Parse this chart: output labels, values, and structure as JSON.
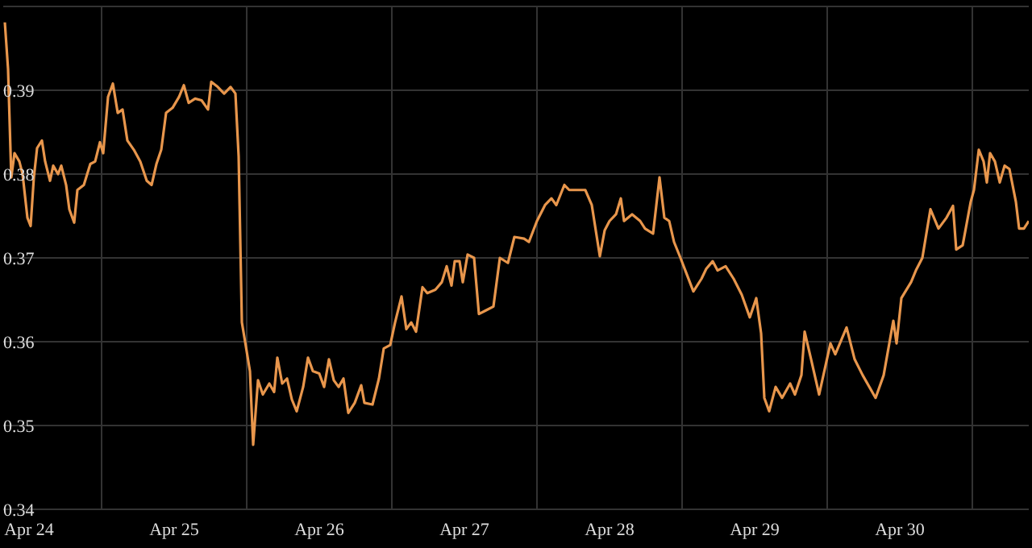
{
  "chart_data": {
    "type": "line",
    "grid": true,
    "marker": "none",
    "line_style": "solid",
    "xlim": [
      "--04-24T07:44",
      "--05-01T09:20"
    ],
    "xticks": [
      {
        "value": "--04-24T12:00",
        "label": "Apr 24"
      },
      {
        "value": "--04-25T12:00",
        "label": "Apr 25"
      },
      {
        "value": "--04-26T12:00",
        "label": "Apr 26"
      },
      {
        "value": "--04-27T12:00",
        "label": "Apr 27"
      },
      {
        "value": "--04-28T12:00",
        "label": "Apr 28"
      },
      {
        "value": "--04-29T12:00",
        "label": "Apr 29"
      },
      {
        "value": "--04-30T12:00",
        "label": "Apr 30"
      },
      {
        "value": "--04-25",
        "label": null
      },
      {
        "value": "--04-26",
        "label": null
      },
      {
        "value": "--04-27",
        "label": null
      },
      {
        "value": "--04-28",
        "label": null
      },
      {
        "value": "--04-29",
        "label": null
      },
      {
        "value": "--04-30",
        "label": null
      },
      {
        "value": "--05-01",
        "label": null
      }
    ],
    "ylim": [
      0.34,
      0.4
    ],
    "yticks": [
      0.34,
      0.35,
      0.36,
      0.37,
      0.38,
      0.39,
      {
        "value": 0.4,
        "label": null
      }
    ],
    "x": [
      "--04-24T08:00",
      "--04-24T08:32",
      "--04-24T09:04",
      "--04-24T09:36",
      "--04-24T10:24",
      "--04-24T10:56",
      "--04-24T11:44",
      "--04-24T12:16",
      "--04-24T12:48",
      "--04-24T13:20",
      "--04-24T14:08",
      "--04-24T14:40",
      "--04-24T15:28",
      "--04-24T16:00",
      "--04-24T16:48",
      "--04-24T17:20",
      "--04-24T18:08",
      "--04-24T18:40",
      "--04-24T19:28",
      "--04-24T20:00",
      "--04-24T21:04",
      "--04-24T22:08",
      "--04-24T22:56",
      "--04-24T23:44",
      "--04-25T00:16",
      "--04-25T01:04",
      "--04-25T01:52",
      "--04-25T02:40",
      "--04-25T03:28",
      "--04-25T04:16",
      "--04-25T05:20",
      "--04-25T06:24",
      "--04-25T07:28",
      "--04-25T08:16",
      "--04-25T09:04",
      "--04-25T09:52",
      "--04-25T10:40",
      "--04-25T11:44",
      "--04-25T12:48",
      "--04-25T13:36",
      "--04-25T14:24",
      "--04-25T15:28",
      "--04-25T16:32",
      "--04-25T17:36",
      "--04-25T18:08",
      "--04-25T19:12",
      "--04-25T20:16",
      "--04-25T21:20",
      "--04-25T22:08",
      "--04-25T22:40",
      "--04-25T23:12",
      "--04-25T23:44",
      "--04-26T00:32",
      "--04-26T01:04",
      "--04-26T01:52",
      "--04-26T02:40",
      "--04-26T03:44",
      "--04-26T04:32",
      "--04-26T05:04",
      "--04-26T05:52",
      "--04-26T06:40",
      "--04-26T07:28",
      "--04-26T08:16",
      "--04-26T09:20",
      "--04-26T10:08",
      "--04-26T10:56",
      "--04-26T12:00",
      "--04-26T12:48",
      "--04-26T13:36",
      "--04-26T14:24",
      "--04-26T15:12",
      "--04-26T16:00",
      "--04-26T16:48",
      "--04-26T17:52",
      "--04-26T18:56",
      "--04-26T19:28",
      "--04-26T20:48",
      "--04-26T21:52",
      "--04-26T22:40",
      "--04-26T23:44",
      "--04-27T00:32",
      "--04-27T01:36",
      "--04-27T02:24",
      "--04-27T03:12",
      "--04-27T04:00",
      "--04-27T05:04",
      "--04-27T05:52",
      "--04-27T07:12",
      "--04-27T08:16",
      "--04-27T09:04",
      "--04-27T09:52",
      "--04-27T10:24",
      "--04-27T11:12",
      "--04-27T11:44",
      "--04-27T12:32",
      "--04-27T13:36",
      "--04-27T14:24",
      "--04-27T15:28",
      "--04-27T16:48",
      "--04-27T17:52",
      "--04-27T19:12",
      "--04-27T20:16",
      "--04-27T21:52",
      "--04-27T22:40",
      "--04-28T00:00",
      "--04-28T01:20",
      "--04-28T02:24",
      "--04-28T03:12",
      "--04-28T04:32",
      "--04-28T05:20",
      "--04-28T06:40",
      "--04-28T08:00",
      "--04-28T09:04",
      "--04-28T10:24",
      "--04-28T11:12",
      "--04-28T12:00",
      "--04-28T13:04",
      "--04-28T13:52",
      "--04-28T14:24",
      "--04-28T15:44",
      "--04-28T17:04",
      "--04-28T17:52",
      "--04-28T19:12",
      "--04-28T20:16",
      "--04-28T21:04",
      "--04-28T21:52",
      "--04-28T22:40",
      "--04-28T23:44",
      "--04-29T00:32",
      "--04-29T01:52",
      "--04-29T03:12",
      "--04-29T04:00",
      "--04-29T05:04",
      "--04-29T05:52",
      "--04-29T07:12",
      "--04-29T08:32",
      "--04-29T09:52",
      "--04-29T11:12",
      "--04-29T12:16",
      "--04-29T13:04",
      "--04-29T13:36",
      "--04-29T14:24",
      "--04-29T15:28",
      "--04-29T16:32",
      "--04-29T17:52",
      "--04-29T18:40",
      "--04-29T19:44",
      "--04-29T20:16",
      "--04-29T21:20",
      "--04-29T22:40",
      "--04-30T00:32",
      "--04-30T01:20",
      "--04-30T03:12",
      "--04-30T04:32",
      "--04-30T05:52",
      "--04-30T08:00",
      "--04-30T09:20",
      "--04-30T10:56",
      "--04-30T11:28",
      "--04-30T12:16",
      "--04-30T13:52",
      "--04-30T14:40",
      "--04-30T15:44",
      "--04-30T17:04",
      "--04-30T18:24",
      "--04-30T19:44",
      "--04-30T20:48",
      "--04-30T21:20",
      "--04-30T22:24",
      "--04-30T23:44",
      "--05-01T00:16",
      "--05-01T01:04",
      "--05-01T01:52",
      "--05-01T02:24",
      "--05-01T02:56",
      "--05-01T03:44",
      "--05-01T04:32",
      "--05-01T05:20",
      "--05-01T06:08",
      "--05-01T07:12",
      "--05-01T07:44",
      "--05-01T08:32",
      "--05-01T09:20"
    ],
    "series": [
      {
        "color": "#e8964c",
        "values": [
          0.3981,
          0.3925,
          0.3796,
          0.3825,
          0.3815,
          0.38,
          0.3748,
          0.3738,
          0.3796,
          0.3831,
          0.384,
          0.3815,
          0.3792,
          0.381,
          0.38,
          0.381,
          0.3787,
          0.3758,
          0.3742,
          0.3781,
          0.3787,
          0.3812,
          0.3815,
          0.3838,
          0.3825,
          0.3892,
          0.3908,
          0.3873,
          0.3877,
          0.384,
          0.3829,
          0.3815,
          0.3792,
          0.3787,
          0.3812,
          0.3829,
          0.3873,
          0.3879,
          0.3892,
          0.3906,
          0.3885,
          0.389,
          0.3888,
          0.3877,
          0.391,
          0.3904,
          0.3896,
          0.3904,
          0.3896,
          0.3821,
          0.3623,
          0.36,
          0.3565,
          0.3477,
          0.3554,
          0.3537,
          0.355,
          0.354,
          0.3581,
          0.355,
          0.3556,
          0.3531,
          0.3517,
          0.3546,
          0.3581,
          0.3565,
          0.3562,
          0.3546,
          0.3579,
          0.3554,
          0.3546,
          0.3556,
          0.3515,
          0.3527,
          0.3548,
          0.3527,
          0.3525,
          0.3556,
          0.3592,
          0.3596,
          0.3623,
          0.3654,
          0.3615,
          0.3623,
          0.3612,
          0.3665,
          0.3658,
          0.3662,
          0.3671,
          0.369,
          0.3667,
          0.3696,
          0.3696,
          0.3671,
          0.3704,
          0.37,
          0.3633,
          0.3637,
          0.3642,
          0.37,
          0.3694,
          0.3725,
          0.3723,
          0.3719,
          0.3744,
          0.3763,
          0.3771,
          0.3763,
          0.3787,
          0.3781,
          0.3781,
          0.3781,
          0.3763,
          0.3702,
          0.3733,
          0.3744,
          0.3752,
          0.3771,
          0.3744,
          0.3752,
          0.3744,
          0.3735,
          0.3729,
          0.3796,
          0.3748,
          0.3744,
          0.3719,
          0.37,
          0.3685,
          0.366,
          0.3675,
          0.3687,
          0.3696,
          0.3685,
          0.369,
          0.3675,
          0.3656,
          0.3629,
          0.3652,
          0.361,
          0.3533,
          0.3517,
          0.3546,
          0.3533,
          0.355,
          0.3537,
          0.356,
          0.3612,
          0.3579,
          0.3537,
          0.3598,
          0.3585,
          0.3617,
          0.3579,
          0.356,
          0.3533,
          0.356,
          0.3625,
          0.3598,
          0.3652,
          0.3671,
          0.3685,
          0.37,
          0.3758,
          0.3735,
          0.3748,
          0.3762,
          0.371,
          0.3715,
          0.3767,
          0.3781,
          0.3829,
          0.3815,
          0.379,
          0.3825,
          0.3815,
          0.379,
          0.381,
          0.3806,
          0.3767,
          0.3735,
          0.3735,
          0.3744
        ]
      }
    ]
  }
}
